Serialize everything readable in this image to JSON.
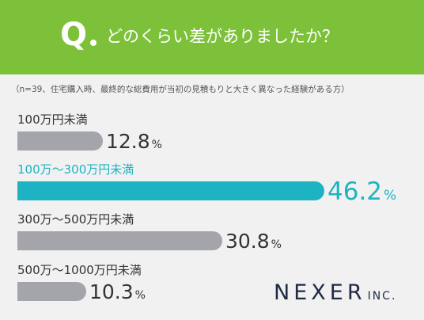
{
  "header": {
    "q_letter": "Q",
    "question": "どのくらい差がありましたか？"
  },
  "note": "（n=39、住宅購入時、最終的な総費用が当初の見積もりと大きく異なった経験がある方）",
  "chart_data": {
    "type": "bar",
    "orientation": "horizontal",
    "categories": [
      "100万円未満",
      "100万～300万円未満",
      "300万～500万円未満",
      "500万～1000万円未満"
    ],
    "values": [
      12.8,
      46.2,
      30.8,
      10.3
    ],
    "value_labels": [
      "12.8",
      "46.2",
      "30.8",
      "10.3"
    ],
    "unit": "%",
    "highlight_index": 1,
    "colors": {
      "bar": "#a3a5aa",
      "highlight": "#1eb3c2",
      "header": "#7dc13a"
    }
  },
  "brand": {
    "name": "NEXER",
    "suffix": "INC."
  }
}
